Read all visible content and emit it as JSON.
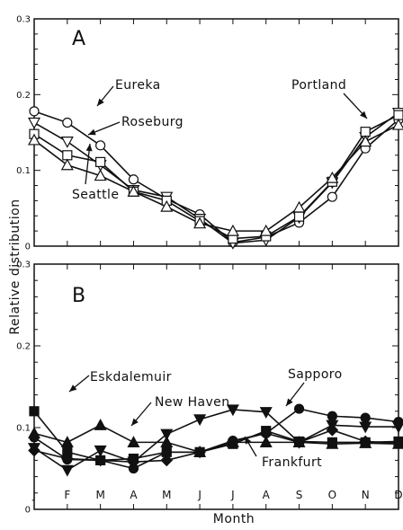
{
  "chart_data": [
    {
      "type": "line",
      "panel_label": "A",
      "x": [
        "J",
        "F",
        "M",
        "A",
        "M",
        "J",
        "J",
        "A",
        "S",
        "O",
        "N",
        "D"
      ],
      "ylim": [
        0,
        0.3
      ],
      "yticks": [
        0,
        0.1,
        0.2,
        0.3
      ],
      "ytick_labels": [
        "0",
        "0.1",
        "0.2",
        "0.3"
      ],
      "series": [
        {
          "name": "Eureka",
          "marker": "circle",
          "filled": false,
          "values": [
            0.178,
            0.163,
            0.133,
            0.088,
            0.062,
            0.042,
            0.005,
            0.012,
            0.031,
            0.065,
            0.129,
            0.167
          ]
        },
        {
          "name": "Roseburg",
          "marker": "triangle-down",
          "filled": false,
          "values": [
            0.163,
            0.138,
            0.107,
            0.074,
            0.065,
            0.036,
            0.004,
            0.008,
            0.038,
            0.084,
            0.144,
            0.176
          ]
        },
        {
          "name": "Portland",
          "marker": "square",
          "filled": false,
          "values": [
            0.148,
            0.12,
            0.111,
            0.072,
            0.06,
            0.033,
            0.01,
            0.013,
            0.039,
            0.085,
            0.151,
            0.173
          ]
        },
        {
          "name": "Seattle",
          "marker": "triangle-up",
          "filled": false,
          "values": [
            0.14,
            0.107,
            0.093,
            0.072,
            0.052,
            0.03,
            0.02,
            0.02,
            0.051,
            0.09,
            0.138,
            0.16
          ]
        }
      ],
      "annotations": [
        "Eureka",
        "Roseburg",
        "Portland",
        "Seattle"
      ]
    },
    {
      "type": "line",
      "panel_label": "B",
      "x": [
        "J",
        "F",
        "M",
        "A",
        "M",
        "J",
        "J",
        "A",
        "S",
        "O",
        "N",
        "D"
      ],
      "ylim": [
        0,
        0.3
      ],
      "yticks": [
        0,
        0.1,
        0.2,
        0.3
      ],
      "ytick_labels": [
        "0",
        "0.1",
        "0.2",
        "0.3"
      ],
      "xlabel": "Month",
      "ylabel": "Relative distribution",
      "series": [
        {
          "name": "Eskdalemuir",
          "marker": "square",
          "filled": true,
          "values": [
            0.12,
            0.07,
            0.06,
            0.062,
            0.07,
            0.07,
            0.08,
            0.096,
            0.083,
            0.082,
            0.082,
            0.083
          ]
        },
        {
          "name": "New Haven",
          "marker": "triangle-up",
          "filled": true,
          "values": [
            0.093,
            0.082,
            0.103,
            0.082,
            0.082,
            0.07,
            0.082,
            0.082,
            0.082,
            0.08,
            0.081,
            0.08
          ]
        },
        {
          "name": "Frankfurt",
          "marker": "diamond",
          "filled": true,
          "values": [
            0.072,
            0.062,
            0.06,
            0.058,
            0.06,
            0.07,
            0.083,
            0.093,
            0.082,
            0.097,
            0.083,
            0.081
          ]
        },
        {
          "name": "Sapporo",
          "marker": "circle",
          "filled": true,
          "values": [
            0.088,
            0.061,
            0.06,
            0.05,
            0.07,
            0.07,
            0.084,
            0.093,
            0.123,
            0.114,
            0.112,
            0.107
          ]
        },
        {
          "name": "",
          "marker": "triangle-down",
          "filled": true,
          "values": [
            0.075,
            0.048,
            0.072,
            0.058,
            0.092,
            0.11,
            0.122,
            0.119,
            0.082,
            0.103,
            0.101,
            0.101
          ]
        }
      ],
      "annotations": [
        "Eskdalemuir",
        "New Haven",
        "Sapporo",
        "Frankfurt"
      ]
    }
  ]
}
